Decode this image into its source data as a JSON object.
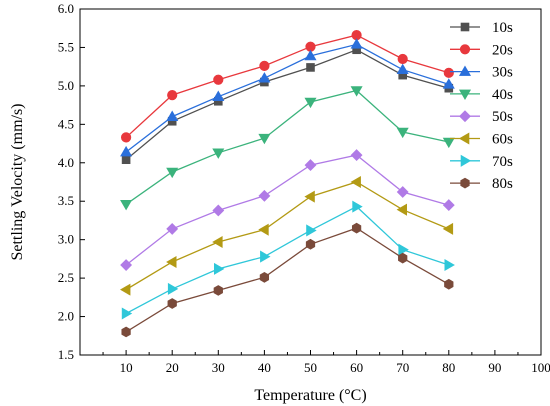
{
  "chart_data": {
    "type": "line",
    "xlabel": "Temperature (°C)",
    "ylabel": "Settling Velocity (mm/s)",
    "xlim": [
      0,
      100
    ],
    "ylim": [
      1.5,
      6.0
    ],
    "xticks": [
      10,
      20,
      30,
      40,
      50,
      60,
      70,
      80,
      90,
      100
    ],
    "yticks": [
      1.5,
      2.0,
      2.5,
      3.0,
      3.5,
      4.0,
      4.5,
      5.0,
      5.5,
      6.0
    ],
    "x": [
      10,
      20,
      30,
      40,
      50,
      60,
      70,
      80
    ],
    "grid": false,
    "legend_position": "right",
    "series": [
      {
        "name": "10s",
        "color": "#505050",
        "marker": "square",
        "values": [
          4.04,
          4.54,
          4.8,
          5.05,
          5.24,
          5.47,
          5.14,
          4.97
        ]
      },
      {
        "name": "20s",
        "color": "#e8383d",
        "marker": "circle",
        "values": [
          4.33,
          4.88,
          5.08,
          5.26,
          5.51,
          5.66,
          5.35,
          5.17
        ]
      },
      {
        "name": "30s",
        "color": "#2a6fdb",
        "marker": "triangle-up",
        "values": [
          4.14,
          4.6,
          4.86,
          5.1,
          5.39,
          5.54,
          5.21,
          5.02
        ]
      },
      {
        "name": "40s",
        "color": "#3bb37c",
        "marker": "triangle-down",
        "values": [
          3.46,
          3.88,
          4.13,
          4.32,
          4.79,
          4.94,
          4.4,
          4.27
        ]
      },
      {
        "name": "50s",
        "color": "#b07ae6",
        "marker": "diamond",
        "values": [
          2.67,
          3.14,
          3.38,
          3.57,
          3.97,
          4.1,
          3.62,
          3.45
        ]
      },
      {
        "name": "60s",
        "color": "#b39a14",
        "marker": "triangle-left",
        "values": [
          2.35,
          2.71,
          2.97,
          3.13,
          3.56,
          3.75,
          3.39,
          3.14
        ]
      },
      {
        "name": "70s",
        "color": "#2fc7d9",
        "marker": "triangle-right",
        "values": [
          2.04,
          2.36,
          2.62,
          2.78,
          3.12,
          3.43,
          2.87,
          2.67
        ]
      },
      {
        "name": "80s",
        "color": "#7a4a3a",
        "marker": "hexagon",
        "values": [
          1.8,
          2.17,
          2.34,
          2.51,
          2.94,
          3.15,
          2.76,
          2.42
        ]
      }
    ]
  }
}
